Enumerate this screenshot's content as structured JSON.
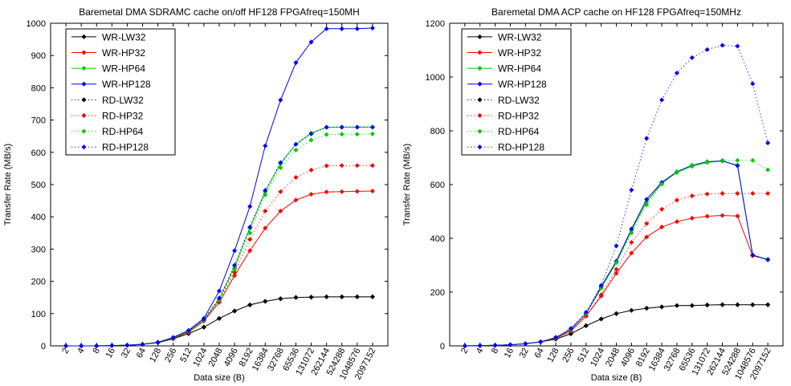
{
  "chart_data": [
    {
      "type": "line",
      "title": "Baremetal DMA SDRAMC cache on/off HF128 FPGAfreq=150MH",
      "xlabel": "Data size (B)",
      "ylabel": "Transfer Rate (MB/s)",
      "ylim": [
        0,
        1000
      ],
      "yticks": [
        0,
        100,
        200,
        300,
        400,
        500,
        600,
        700,
        800,
        900,
        1000
      ],
      "categories": [
        "2",
        "4",
        "8",
        "16",
        "32",
        "64",
        "128",
        "256",
        "512",
        "1024",
        "2048",
        "4096",
        "8192",
        "16384",
        "32768",
        "65536",
        "131072",
        "262144",
        "524288",
        "1048576",
        "2097152"
      ],
      "legend_position": "top-left",
      "series": [
        {
          "name": "WR-LW32",
          "color": "#000000",
          "style": "solid",
          "values": [
            0,
            0,
            0,
            1,
            2,
            5,
            10,
            22,
            38,
            58,
            85,
            108,
            127,
            138,
            146,
            150,
            151,
            152,
            152,
            152,
            152
          ]
        },
        {
          "name": "WR-HP32",
          "color": "#ff0000",
          "style": "solid",
          "values": [
            0,
            0,
            0,
            1,
            2,
            5,
            11,
            24,
            42,
            77,
            135,
            218,
            295,
            365,
            418,
            452,
            470,
            477,
            478,
            479,
            480
          ]
        },
        {
          "name": "WR-HP64",
          "color": "#00cc00",
          "style": "solid",
          "values": [
            0,
            0,
            0,
            1,
            2,
            5,
            11,
            25,
            45,
            80,
            145,
            245,
            365,
            478,
            565,
            625,
            660,
            677,
            678,
            678,
            678
          ]
        },
        {
          "name": "WR-HP128",
          "color": "#0000ff",
          "style": "solid",
          "values": [
            0,
            0,
            0,
            1,
            2,
            5,
            11,
            26,
            48,
            85,
            170,
            295,
            432,
            620,
            762,
            878,
            942,
            983,
            983,
            983,
            985
          ]
        },
        {
          "name": "RD-LW32",
          "color": "#000000",
          "style": "dotted",
          "values": [
            0,
            0,
            0,
            1,
            2,
            5,
            10,
            22,
            38,
            58,
            85,
            108,
            127,
            138,
            146,
            150,
            151,
            152,
            152,
            152,
            152
          ]
        },
        {
          "name": "RD-HP32",
          "color": "#ff0000",
          "style": "dotted",
          "values": [
            0,
            0,
            0,
            1,
            2,
            5,
            11,
            24,
            42,
            78,
            140,
            228,
            330,
            418,
            478,
            522,
            545,
            558,
            559,
            559,
            559
          ]
        },
        {
          "name": "RD-HP64",
          "color": "#00cc00",
          "style": "dotted",
          "values": [
            0,
            0,
            0,
            1,
            2,
            5,
            11,
            25,
            45,
            80,
            142,
            238,
            350,
            468,
            552,
            607,
            638,
            655,
            656,
            656,
            657
          ]
        },
        {
          "name": "RD-HP128",
          "color": "#0000ff",
          "style": "dotted",
          "values": [
            0,
            0,
            0,
            1,
            2,
            5,
            11,
            26,
            47,
            83,
            148,
            250,
            368,
            482,
            568,
            625,
            657,
            678,
            678,
            678,
            678
          ]
        }
      ]
    },
    {
      "type": "line",
      "title": "Baremetal DMA ACP cache on HF128 FPGAfreq=150MHz",
      "xlabel": "Data size (B)",
      "ylabel": "Transfer Rate (MB/s)",
      "ylim": [
        0,
        1200
      ],
      "yticks": [
        0,
        200,
        400,
        600,
        800,
        1000,
        1200
      ],
      "categories": [
        "2",
        "4",
        "8",
        "16",
        "32",
        "64",
        "128",
        "256",
        "512",
        "1024",
        "2048",
        "4096",
        "8192",
        "16384",
        "32768",
        "65536",
        "131072",
        "262144",
        "524288",
        "1048576",
        "2097152"
      ],
      "legend_position": "top-left",
      "series": [
        {
          "name": "WR-LW32",
          "color": "#000000",
          "style": "solid",
          "values": [
            0,
            1,
            2,
            4,
            8,
            15,
            25,
            45,
            75,
            100,
            120,
            132,
            140,
            145,
            150,
            150,
            152,
            153,
            153,
            153,
            153
          ]
        },
        {
          "name": "WR-HP32",
          "color": "#ff0000",
          "style": "solid",
          "values": [
            0,
            1,
            2,
            4,
            8,
            15,
            28,
            55,
            110,
            185,
            270,
            345,
            405,
            442,
            462,
            475,
            482,
            485,
            483,
            335,
            322
          ]
        },
        {
          "name": "WR-HP64",
          "color": "#00cc00",
          "style": "solid",
          "values": [
            0,
            1,
            2,
            4,
            8,
            15,
            30,
            60,
            120,
            215,
            310,
            430,
            535,
            605,
            645,
            668,
            682,
            688,
            672,
            338,
            322
          ]
        },
        {
          "name": "WR-HP128",
          "color": "#0000ff",
          "style": "solid",
          "values": [
            0,
            1,
            2,
            4,
            8,
            15,
            30,
            62,
            120,
            220,
            315,
            435,
            545,
            608,
            648,
            672,
            685,
            688,
            670,
            338,
            320
          ]
        },
        {
          "name": "RD-LW32",
          "color": "#000000",
          "style": "dotted",
          "values": [
            0,
            1,
            2,
            4,
            8,
            15,
            25,
            45,
            75,
            100,
            120,
            132,
            140,
            145,
            150,
            150,
            152,
            153,
            153,
            153,
            153
          ]
        },
        {
          "name": "RD-HP32",
          "color": "#ff0000",
          "style": "dotted",
          "values": [
            0,
            1,
            2,
            4,
            8,
            15,
            28,
            55,
            112,
            190,
            285,
            385,
            455,
            508,
            542,
            558,
            565,
            567,
            567,
            567,
            567
          ]
        },
        {
          "name": "RD-HP64",
          "color": "#00cc00",
          "style": "dotted",
          "values": [
            0,
            1,
            2,
            4,
            8,
            15,
            30,
            60,
            120,
            215,
            310,
            420,
            525,
            602,
            648,
            672,
            684,
            690,
            690,
            690,
            655
          ]
        },
        {
          "name": "RD-HP128",
          "color": "#0000ff",
          "style": "dotted",
          "values": [
            0,
            1,
            2,
            4,
            8,
            15,
            32,
            65,
            125,
            225,
            372,
            580,
            772,
            915,
            1015,
            1072,
            1102,
            1118,
            1115,
            975,
            755
          ]
        }
      ]
    }
  ]
}
